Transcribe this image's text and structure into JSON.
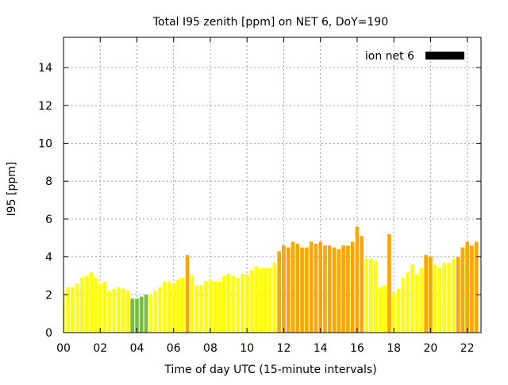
{
  "chart_data": {
    "type": "bar",
    "title": "Total I95 zenith [ppm] on NET 6, DoY=190",
    "xlabel": "Time of day UTC (15-minute intervals)",
    "ylabel": "I95 [ppm]",
    "xlim": [
      0,
      22.75
    ],
    "ylim": [
      0,
      15.6
    ],
    "xticks": [
      "00",
      "02",
      "04",
      "06",
      "08",
      "10",
      "12",
      "14",
      "16",
      "18",
      "20",
      "22"
    ],
    "xtick_values": [
      0,
      2,
      4,
      6,
      8,
      10,
      12,
      14,
      16,
      18,
      20,
      22
    ],
    "yticks": [
      "0",
      "2",
      "4",
      "6",
      "8",
      "10",
      "12",
      "14"
    ],
    "ytick_values": [
      0,
      2,
      4,
      6,
      8,
      10,
      12,
      14
    ],
    "grid": true,
    "legend": {
      "position": "top-right",
      "label": "ion net 6",
      "color": "#000000"
    },
    "colors": {
      "green": "#77bb44",
      "yellow": "#ffff00",
      "orange": "#ffa500"
    },
    "bar_step_hours": 0.25,
    "values": [
      2.1,
      2.4,
      2.4,
      2.6,
      2.9,
      3.0,
      3.2,
      2.9,
      2.6,
      2.7,
      2.2,
      2.3,
      2.4,
      2.3,
      2.2,
      1.8,
      1.8,
      1.9,
      2.0,
      2.0,
      2.2,
      2.4,
      2.7,
      2.7,
      2.6,
      2.8,
      2.9,
      4.1,
      3.0,
      2.5,
      2.5,
      2.7,
      2.8,
      2.7,
      2.7,
      3.0,
      3.1,
      3.0,
      2.9,
      3.1,
      3.1,
      3.3,
      3.5,
      3.4,
      3.4,
      3.4,
      3.7,
      4.3,
      4.6,
      4.5,
      4.8,
      4.7,
      4.5,
      4.5,
      4.8,
      4.7,
      4.8,
      4.6,
      4.6,
      4.5,
      4.4,
      4.6,
      4.6,
      4.8,
      5.6,
      5.1,
      3.9,
      3.9,
      3.8,
      2.4,
      2.5,
      5.2,
      2.1,
      2.3,
      2.9,
      3.2,
      3.6,
      3.1,
      3.4,
      4.1,
      4.0,
      3.6,
      3.4,
      3.7,
      3.7,
      3.9,
      4.0,
      4.5,
      4.8,
      4.6,
      4.8
    ],
    "bar_colors": [
      "yellow",
      "yellow",
      "yellow",
      "yellow",
      "yellow",
      "yellow",
      "yellow",
      "yellow",
      "yellow",
      "yellow",
      "yellow",
      "yellow",
      "yellow",
      "yellow",
      "yellow",
      "green",
      "green",
      "green",
      "green",
      "yellow",
      "yellow",
      "yellow",
      "yellow",
      "yellow",
      "yellow",
      "yellow",
      "yellow",
      "orange",
      "yellow",
      "yellow",
      "yellow",
      "yellow",
      "yellow",
      "yellow",
      "yellow",
      "yellow",
      "yellow",
      "yellow",
      "yellow",
      "yellow",
      "yellow",
      "yellow",
      "yellow",
      "yellow",
      "yellow",
      "yellow",
      "yellow",
      "orange",
      "orange",
      "orange",
      "orange",
      "orange",
      "orange",
      "orange",
      "orange",
      "orange",
      "orange",
      "orange",
      "orange",
      "orange",
      "orange",
      "orange",
      "orange",
      "orange",
      "orange",
      "orange",
      "yellow",
      "yellow",
      "yellow",
      "yellow",
      "yellow",
      "orange",
      "yellow",
      "yellow",
      "yellow",
      "yellow",
      "yellow",
      "yellow",
      "yellow",
      "orange",
      "orange",
      "yellow",
      "yellow",
      "yellow",
      "yellow",
      "yellow",
      "orange",
      "orange",
      "orange",
      "orange",
      "orange"
    ]
  }
}
